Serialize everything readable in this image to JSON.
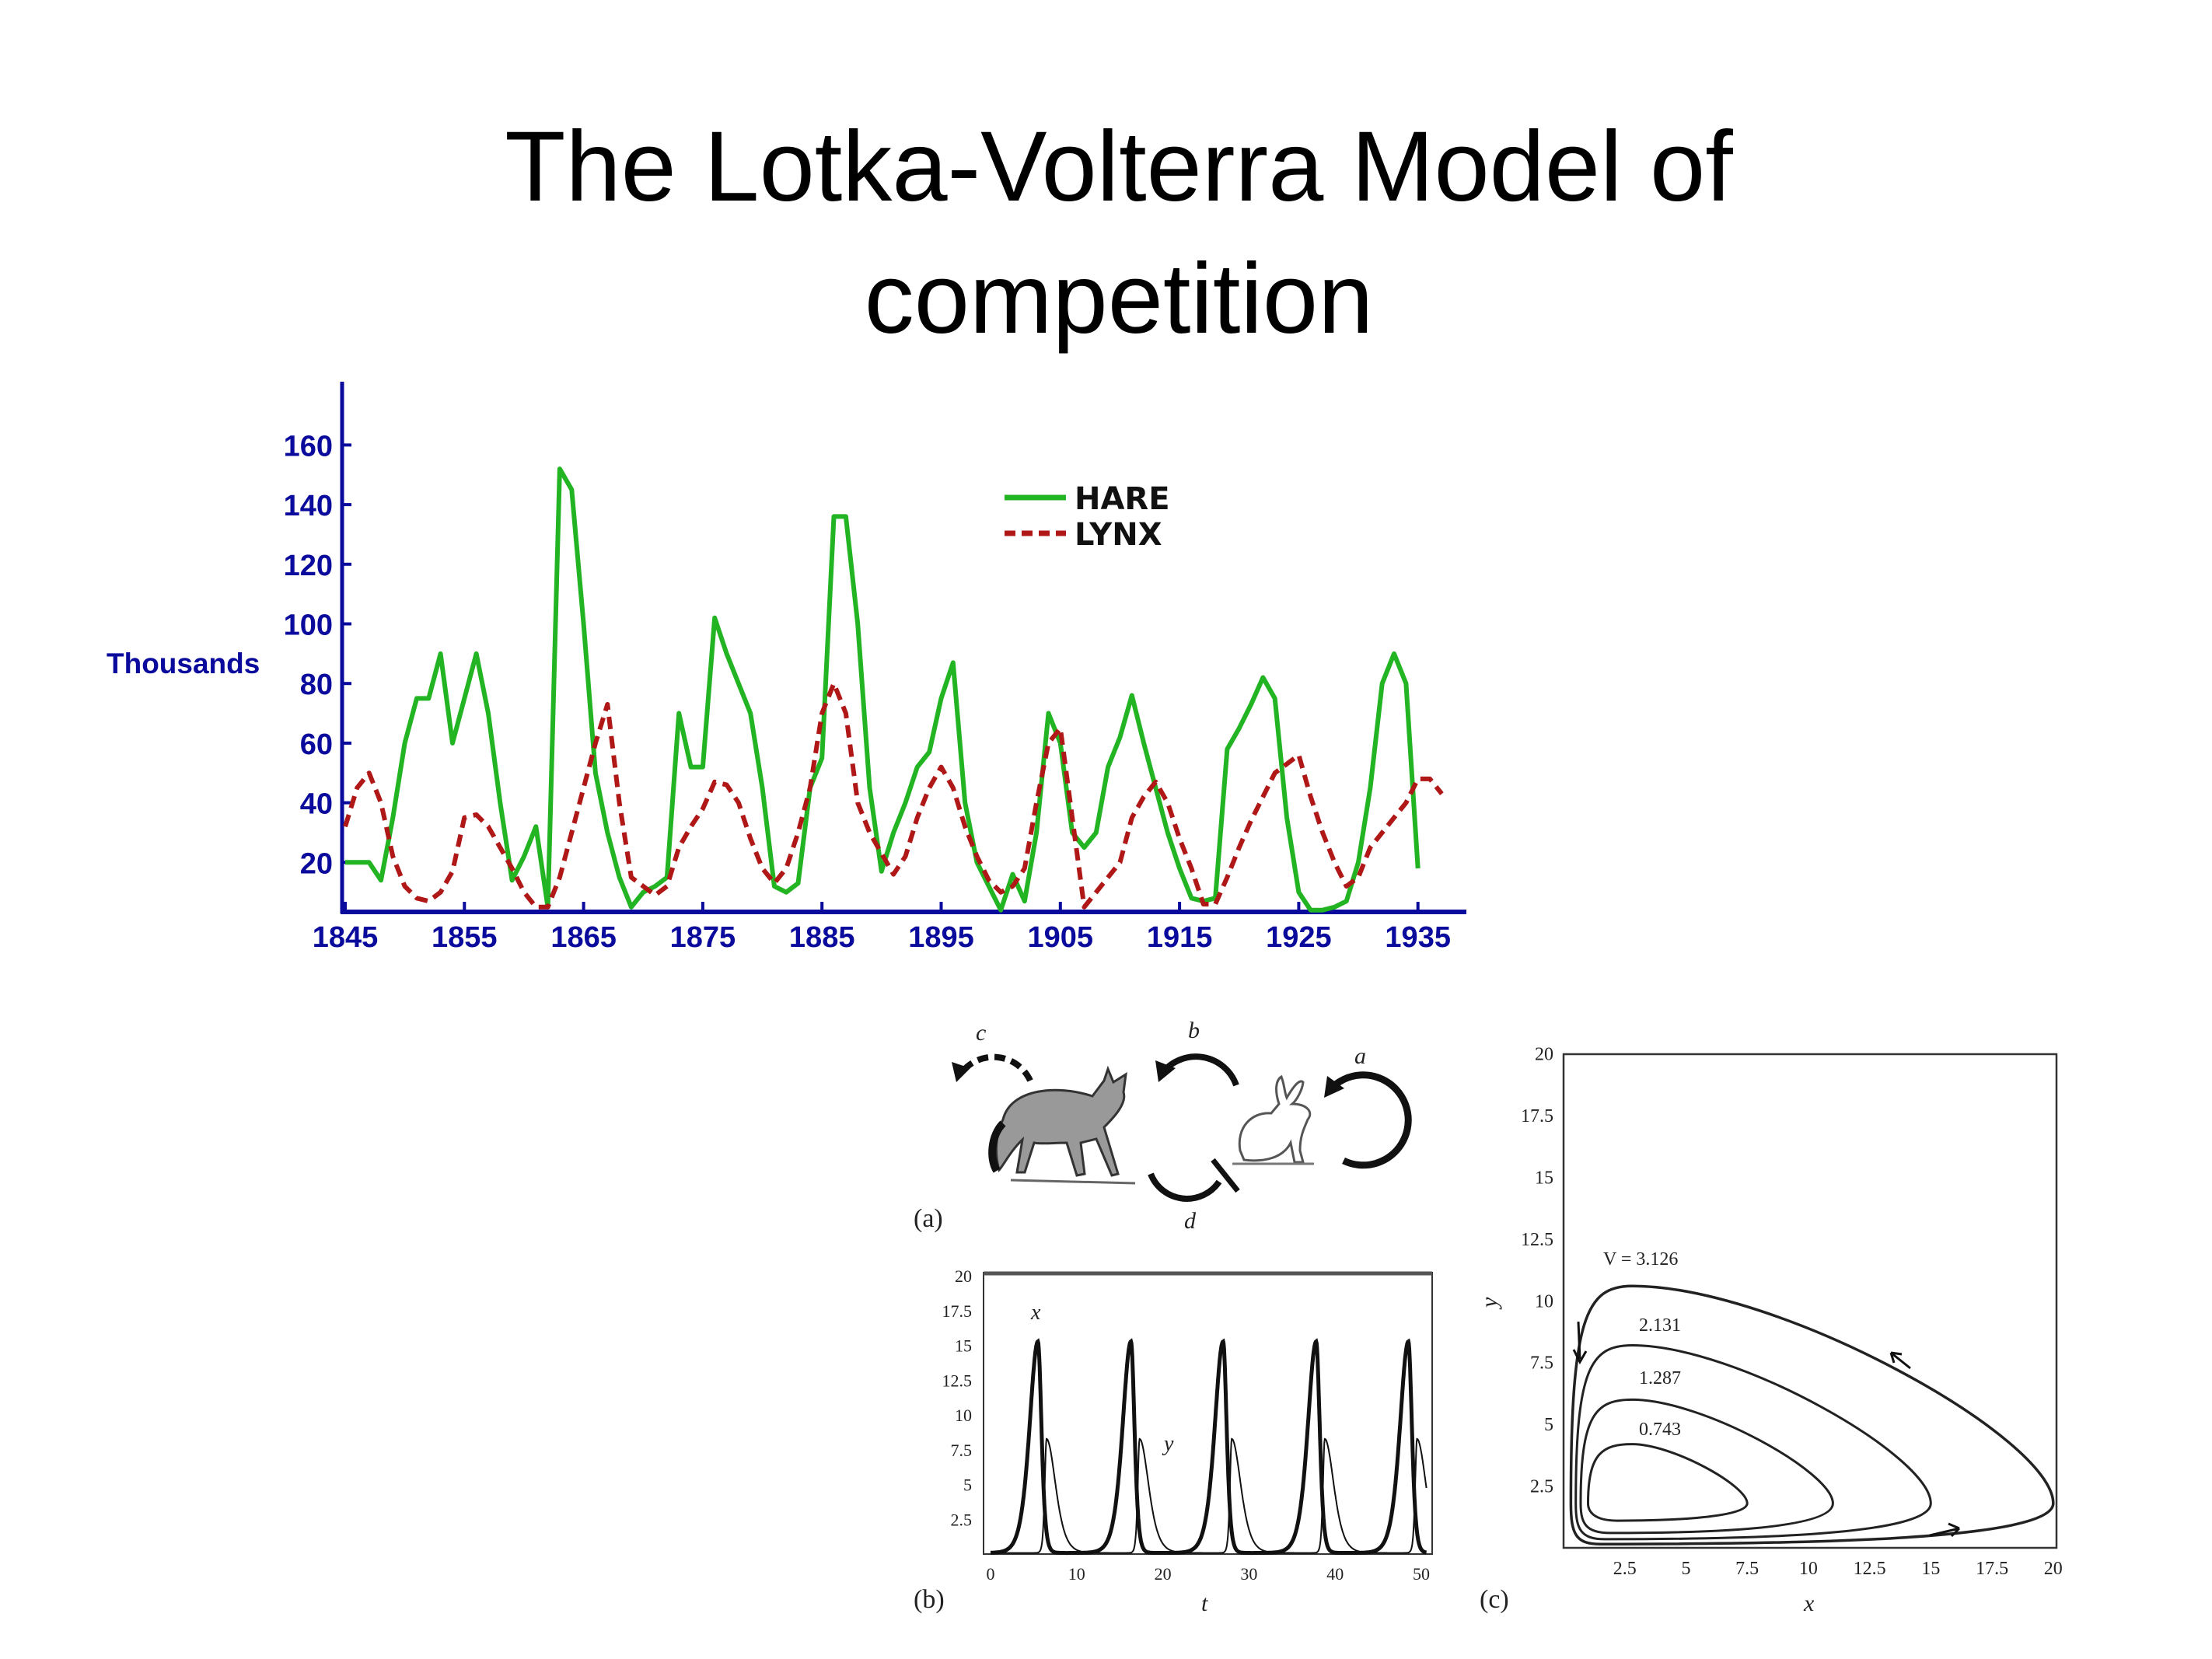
{
  "slide": {
    "title_line1": "The Lotka-Volterra Model of",
    "title_line2": "competition"
  },
  "colors": {
    "axis": "#0a0a9c",
    "hare": "#22b422",
    "lynx": "#b01818",
    "ink": "#111111"
  },
  "diagram": {
    "label_a": "a",
    "label_b": "b",
    "label_c": "c",
    "label_d": "d",
    "panel_label": "(a)",
    "icons": [
      "fox-illustration",
      "rabbit-illustration"
    ]
  },
  "chart_data": [
    {
      "type": "line",
      "ylabel": "Thousands",
      "xlabel": "",
      "xlim": [
        1845,
        1937
      ],
      "ylim": [
        0,
        170
      ],
      "xticks": [
        1845,
        1855,
        1865,
        1875,
        1885,
        1895,
        1905,
        1915,
        1925,
        1935
      ],
      "yticks": [
        20,
        40,
        60,
        80,
        100,
        120,
        140,
        160
      ],
      "legend": {
        "placement": "top-right",
        "entries": [
          "HARE",
          "LYNX"
        ]
      },
      "grid": false,
      "series": [
        {
          "name": "HARE",
          "style": "solid",
          "x_start": 1845,
          "values": [
            20,
            20,
            20,
            14,
            35,
            60,
            75,
            75,
            90,
            60,
            75,
            90,
            70,
            40,
            14,
            22,
            32,
            5,
            152,
            145,
            100,
            50,
            30,
            15,
            5,
            10,
            12,
            15,
            70,
            52,
            52,
            102,
            90,
            80,
            70,
            45,
            12,
            10,
            13,
            45,
            55,
            136,
            136,
            100,
            45,
            17,
            30,
            40,
            52,
            57,
            75,
            87,
            40,
            20,
            12,
            4,
            16,
            7,
            30,
            70,
            60,
            30,
            25,
            30,
            52,
            62,
            76,
            60,
            45,
            30,
            18,
            8,
            7,
            8,
            58,
            65,
            73,
            82,
            75,
            35,
            10,
            4,
            4,
            5,
            7,
            20,
            45,
            80,
            90,
            80,
            18
          ]
        },
        {
          "name": "LYNX",
          "style": "dashed",
          "x_start": 1845,
          "values": [
            32,
            45,
            50,
            40,
            22,
            12,
            8,
            7,
            10,
            17,
            35,
            36,
            32,
            25,
            18,
            10,
            5,
            5,
            15,
            30,
            45,
            60,
            73,
            40,
            15,
            12,
            9,
            12,
            25,
            32,
            38,
            47,
            46,
            40,
            28,
            18,
            13,
            18,
            30,
            45,
            70,
            80,
            70,
            40,
            30,
            23,
            16,
            22,
            35,
            45,
            52,
            45,
            32,
            22,
            14,
            10,
            12,
            18,
            40,
            60,
            65,
            35,
            5,
            10,
            15,
            20,
            35,
            42,
            47,
            40,
            28,
            18,
            6,
            6,
            15,
            25,
            34,
            42,
            50,
            53,
            56,
            42,
            30,
            20,
            12,
            15,
            25,
            30,
            35,
            40,
            48,
            48,
            43
          ]
        }
      ]
    },
    {
      "type": "line",
      "panel_label": "(b)",
      "xlabel": "t",
      "ylabel": "",
      "xlim": [
        0,
        51
      ],
      "ylim": [
        0,
        20
      ],
      "xticks": [
        0,
        10,
        20,
        30,
        40,
        50
      ],
      "yticks": [
        2.5,
        5,
        7.5,
        10,
        12.5,
        15,
        17.5,
        20
      ],
      "series": [
        {
          "name": "x",
          "peak_value": 15.2,
          "peak_times": [
            5.5,
            16.3,
            27.0,
            37.8,
            48.5
          ]
        },
        {
          "name": "y",
          "peak_value": 8.2,
          "peak_times": [
            6.5,
            17.3,
            28.0,
            38.8,
            49.5
          ]
        }
      ]
    },
    {
      "type": "line",
      "panel_label": "(c)",
      "xlabel": "x",
      "ylabel": "y",
      "xlim": [
        0,
        20
      ],
      "ylim": [
        0,
        20
      ],
      "xticks": [
        2.5,
        5,
        7.5,
        10,
        12.5,
        15,
        17.5,
        20
      ],
      "yticks": [
        2.5,
        5,
        7.5,
        10,
        12.5,
        15,
        17.5,
        20
      ],
      "orbits": [
        {
          "label": "V = 3.126",
          "x_min": 0.3,
          "x_max": 20,
          "y_min": 0.15,
          "y_max": 10.6
        },
        {
          "label": "2.131",
          "x_min": 0.5,
          "x_max": 15,
          "y_min": 0.35,
          "y_max": 8.2
        },
        {
          "label": "1.287",
          "x_min": 0.7,
          "x_max": 11,
          "y_min": 0.6,
          "y_max": 6.0
        },
        {
          "label": "0.743",
          "x_min": 1.0,
          "x_max": 7.5,
          "y_min": 1.1,
          "y_max": 4.2
        }
      ]
    }
  ]
}
